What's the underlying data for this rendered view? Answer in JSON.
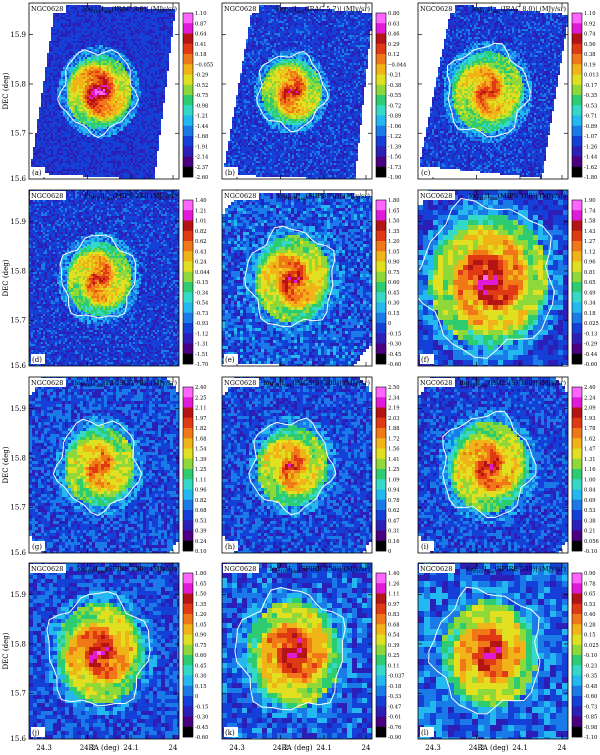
{
  "figure": {
    "x_axis_label": "RA (deg)",
    "y_axis_label": "DEC (deg)",
    "x_ticks": [
      "24.3",
      "24.2",
      "24.1",
      "24"
    ],
    "y_ticks": [
      "15.9",
      "15.8",
      "15.7",
      "15.6"
    ]
  },
  "chart_data": [
    {
      "type": "heatmap",
      "panel": "a",
      "object": "NGC0628",
      "title_main": "log",
      "title_sub": "10",
      "title_abs": "|I",
      "title_sub2": "obs",
      "title_rest": "(IRAC 3.6)|  (MJy/sr)",
      "colorbar": [
        "1.10",
        "0.87",
        "0.64",
        "0.41",
        "0.18",
        "-0.055",
        "0.29",
        "0.52",
        "0.75",
        "0.98",
        "1.21",
        "1.44",
        "1.68",
        "1.91",
        "2.14",
        "2.37",
        "2.60"
      ],
      "colorbar_neg_from": 5,
      "xlim": [
        24.33,
        23.98
      ],
      "ylim": [
        15.6,
        15.95
      ]
    },
    {
      "type": "heatmap",
      "panel": "b",
      "object": "NGC0628",
      "title_main": "log",
      "title_sub": "10",
      "title_abs": "|I",
      "title_sub2": "obs",
      "title_rest": "(IRAC 5.7)|  (MJy/sr)",
      "colorbar": [
        "0.80",
        "0.63",
        "0.46",
        "0.29",
        "0.12",
        "-0.044",
        "0.21",
        "0.38",
        "0.55",
        "0.72",
        "0.89",
        "1.06",
        "1.22",
        "1.39",
        "1.56",
        "1.73",
        "1.90"
      ],
      "colorbar_neg_from": 5,
      "xlim": [
        24.33,
        23.98
      ],
      "ylim": [
        15.6,
        15.95
      ]
    },
    {
      "type": "heatmap",
      "panel": "c",
      "object": "NGC0628",
      "title_main": "log",
      "title_sub": "10",
      "title_abs": "|I",
      "title_sub2": "obs",
      "title_rest": "(IRAC 8.0)|  (MJy/sr)",
      "colorbar": [
        "1.10",
        "0.92",
        "0.74",
        "0.56",
        "0.38",
        "0.19",
        "0.013",
        "0.17",
        "0.35",
        "0.53",
        "0.71",
        "0.89",
        "1.07",
        "1.26",
        "1.44",
        "1.62",
        "1.80"
      ],
      "colorbar_neg_from": 7,
      "xlim": [
        24.33,
        23.98
      ],
      "ylim": [
        15.6,
        15.95
      ]
    },
    {
      "type": "heatmap",
      "panel": "d",
      "object": "NGC0628",
      "title_main": "log",
      "title_sub": "10",
      "title_abs": "|I",
      "title_sub2": "obs",
      "title_rest": "(MIPS 24)|  (MJy/sr)",
      "colorbar": [
        "1.40",
        "1.21",
        "1.01",
        "0.82",
        "0.62",
        "0.43",
        "0.24",
        "0.044",
        "0.15",
        "0.34",
        "0.54",
        "0.73",
        "0.93",
        "1.12",
        "1.31",
        "1.51",
        "1.70"
      ],
      "colorbar_neg_from": 8,
      "xlim": [
        24.33,
        23.98
      ],
      "ylim": [
        15.6,
        15.95
      ]
    },
    {
      "type": "heatmap",
      "panel": "e",
      "object": "NGC0628",
      "title_main": "log",
      "title_sub": "10",
      "title_abs": "|I",
      "title_sub2": "obs",
      "title_rest": "(MIPS 70)|  (MJy/sr)",
      "colorbar": [
        "1.80",
        "1.65",
        "1.50",
        "1.35",
        "1.20",
        "1.05",
        "0.90",
        "0.75",
        "0.60",
        "0.45",
        "0.30",
        "0.15",
        "0",
        "0.15",
        "0.30",
        "0.45",
        "0.60"
      ],
      "colorbar_neg_from": 13,
      "xlim": [
        24.33,
        23.98
      ],
      "ylim": [
        15.6,
        15.95
      ]
    },
    {
      "type": "heatmap",
      "panel": "f",
      "object": "NGC0628",
      "title_main": "log",
      "title_sub": "10",
      "title_abs": "|I",
      "title_sub2": "obs",
      "title_rest": "(MIPS 160)|  (MJy/sr)",
      "colorbar": [
        "1.90",
        "1.74",
        "1.58",
        "1.43",
        "1.27",
        "1.12",
        "0.96",
        "0.81",
        "0.65",
        "0.49",
        "0.34",
        "0.18",
        "0.025",
        "0.13",
        "0.29",
        "0.44",
        "0.60"
      ],
      "colorbar_neg_from": 13,
      "xlim": [
        24.33,
        23.98
      ],
      "ylim": [
        15.6,
        15.95
      ]
    },
    {
      "type": "heatmap",
      "panel": "g",
      "object": "NGC0628",
      "title_main": "log",
      "title_sub": "10",
      "title_abs": "|I",
      "title_sub2": "obs",
      "title_rest": "(PACS(S) 70)|  (MJy/sr)",
      "colorbar": [
        "2.40",
        "2.25",
        "2.11",
        "1.97",
        "1.82",
        "1.68",
        "1.54",
        "1.39",
        "1.25",
        "1.11",
        "0.96",
        "0.82",
        "0.68",
        "0.53",
        "0.39",
        "0.24",
        "0.10"
      ],
      "colorbar_neg_from": 17,
      "xlim": [
        24.33,
        23.98
      ],
      "ylim": [
        15.6,
        15.95
      ]
    },
    {
      "type": "heatmap",
      "panel": "h",
      "object": "NGC0628",
      "title_main": "log",
      "title_sub": "10",
      "title_abs": "|I",
      "title_sub2": "obs",
      "title_rest": "(PACS(S) 100)|  (MJy/sr)",
      "colorbar": [
        "2.50",
        "2.34",
        "2.19",
        "2.03",
        "1.88",
        "1.72",
        "1.56",
        "1.41",
        "1.25",
        "1.09",
        "0.94",
        "0.78",
        "0.62",
        "0.47",
        "0.31",
        "0.16",
        "0"
      ],
      "colorbar_neg_from": 17,
      "xlim": [
        24.33,
        23.98
      ],
      "ylim": [
        15.6,
        15.95
      ]
    },
    {
      "type": "heatmap",
      "panel": "i",
      "object": "NGC0628",
      "title_main": "log",
      "title_sub": "10",
      "title_abs": "|I",
      "title_sub2": "obs",
      "title_rest": "(PACS(S) 160)|  (MJy/sr)",
      "colorbar": [
        "2.40",
        "2.24",
        "2.09",
        "1.93",
        "1.78",
        "1.62",
        "1.47",
        "1.31",
        "1.16",
        "1.00",
        "0.84",
        "0.69",
        "0.53",
        "0.38",
        "0.21",
        "0.056",
        "0.10"
      ],
      "colorbar_neg_from": 16,
      "xlim": [
        24.33,
        23.98
      ],
      "ylim": [
        15.6,
        15.95
      ]
    },
    {
      "type": "heatmap",
      "panel": "j",
      "object": "NGC0628",
      "title_main": "log",
      "title_sub": "10",
      "title_abs": "|I",
      "title_sub2": "obs",
      "title_rest": "(SPIRE 250)|  (MJy/sr)",
      "colorbar": [
        "1.80",
        "1.65",
        "1.50",
        "1.35",
        "1.20",
        "1.05",
        "0.90",
        "0.75",
        "0.60",
        "0.45",
        "0.30",
        "0.15",
        "0",
        "0.15",
        "0.30",
        "0.45",
        "0.60"
      ],
      "colorbar_neg_from": 13,
      "xlim": [
        24.33,
        23.98
      ],
      "ylim": [
        15.6,
        15.95
      ]
    },
    {
      "type": "heatmap",
      "panel": "k",
      "object": "NGC0628",
      "title_main": "log",
      "title_sub": "10",
      "title_abs": "|I",
      "title_sub2": "obs",
      "title_rest": "(SPIRE 350)|  (MJy/sr)",
      "colorbar": [
        "1.40",
        "1.26",
        "1.11",
        "0.97",
        "0.83",
        "0.68",
        "0.54",
        "0.39",
        "0.25",
        "0.11",
        "0.037",
        "0.18",
        "0.33",
        "0.47",
        "0.61",
        "0.76",
        "0.90"
      ],
      "colorbar_neg_from": 10,
      "xlim": [
        24.33,
        23.98
      ],
      "ylim": [
        15.6,
        15.95
      ]
    },
    {
      "type": "heatmap",
      "panel": "l",
      "object": "NGC0628",
      "title_main": "log",
      "title_sub": "10",
      "title_abs": "|I",
      "title_sub2": "obs",
      "title_rest": "(SPIRE 500)|  (MJy/sr)",
      "colorbar": [
        "0.90",
        "0.78",
        "0.65",
        "0.53",
        "0.40",
        "0.28",
        "0.15",
        "0.025",
        "0.10",
        "0.23",
        "0.35",
        "0.48",
        "0.60",
        "0.73",
        "0.85",
        "0.98",
        "1.10"
      ],
      "colorbar_neg_from": 8,
      "xlim": [
        24.33,
        23.98
      ],
      "ylim": [
        15.6,
        15.95
      ]
    }
  ],
  "colors": {
    "cmap": [
      "#000000",
      "#4b0082",
      "#2b1fb8",
      "#1440d8",
      "#1a7be8",
      "#23b8f0",
      "#35d9c8",
      "#2ecc71",
      "#8fd83a",
      "#e0e020",
      "#f0b418",
      "#f07818",
      "#e03a14",
      "#b41414",
      "#e01ad8",
      "#ff66ff"
    ],
    "background_noise": "#10307a",
    "contour": "#ffffff"
  }
}
